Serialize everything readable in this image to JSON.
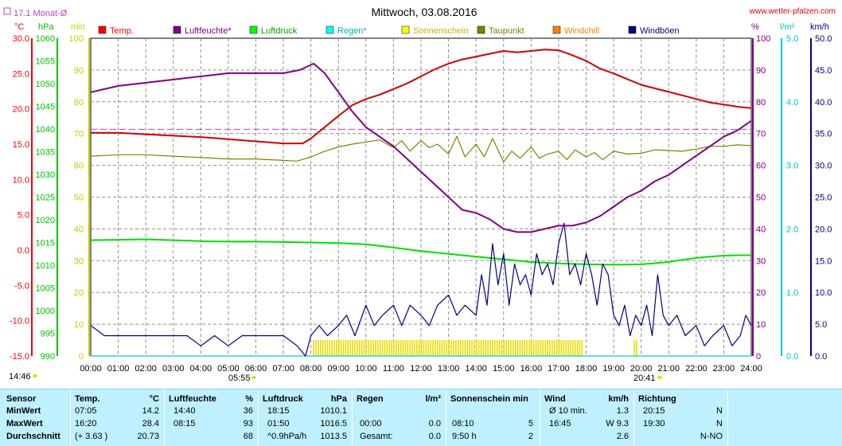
{
  "chart_data": {
    "type": "line",
    "title": "Mittwoch, 03.08.2016",
    "source_text": "www.wetter-pfalzen.com",
    "month_avg_label": "17.1 Monat-Ø",
    "x_ticks": [
      "00:00",
      "01:00",
      "02:00",
      "03:00",
      "04:00",
      "05:00",
      "06:00",
      "07:00",
      "08:00",
      "09:00",
      "10:00",
      "11:00",
      "12:00",
      "13:00",
      "14:00",
      "15:00",
      "16:00",
      "17:00",
      "18:00",
      "19:00",
      "20:00",
      "21:00",
      "22:00",
      "23:00",
      "24:00"
    ],
    "sunrise_label": "05:55",
    "sunset_label": "20:41",
    "now_label": "14:46",
    "axes": {
      "temp": {
        "unit": "°C",
        "range": [
          -15,
          30
        ],
        "ticks": [
          "30.0",
          "25.0",
          "20.0",
          "15.0",
          "10.0",
          "5.0",
          "0.0",
          "-5.0",
          "-10.0",
          "-15.0"
        ],
        "color": "#ff0000"
      },
      "press": {
        "unit": "hPa",
        "range": [
          990,
          1060
        ],
        "ticks": [
          "1060",
          "1055",
          "1050",
          "1045",
          "1040",
          "1035",
          "1030",
          "1025",
          "1020",
          "1015",
          "1010",
          "1005",
          "1000",
          "995",
          "990"
        ],
        "color": "#00c000"
      },
      "sun": {
        "unit": "min",
        "range": [
          0,
          100
        ],
        "ticks": [
          "100",
          "90",
          "80",
          "70",
          "60",
          "50",
          "40",
          "30",
          "20",
          "10",
          "0"
        ],
        "color": "#c8c800"
      },
      "hum": {
        "unit": "%",
        "range": [
          0,
          100
        ],
        "ticks": [
          "100",
          "90",
          "80",
          "70",
          "60",
          "50",
          "40",
          "30",
          "20",
          "10",
          "0"
        ],
        "color": "#800080"
      },
      "rain": {
        "unit": "l/m²",
        "range": [
          0,
          5
        ],
        "ticks": [
          "5.0",
          "4.0",
          "3.0",
          "2.0",
          "1.0",
          "0.0"
        ],
        "color": "#00c8c8"
      },
      "wind": {
        "unit": "km/h",
        "range": [
          0,
          50
        ],
        "ticks": [
          "50.0",
          "45.0",
          "40.0",
          "35.0",
          "30.0",
          "25.0",
          "20.0",
          "15.0",
          "10.0",
          "5.0",
          "0.0"
        ],
        "color": "#000080"
      }
    },
    "legend": [
      {
        "name": "Temp.",
        "color": "#ff0000"
      },
      {
        "name": "Luftfeuchte*",
        "color": "#800080"
      },
      {
        "name": "Luftdruck",
        "color": "#00ff00"
      },
      {
        "name": "Regen*",
        "color": "#00ffff"
      },
      {
        "name": "Sonnenschein",
        "color": "#ffff00"
      },
      {
        "name": "Taupunkt",
        "color": "#808000"
      },
      {
        "name": "Windchill",
        "color": "#ff8000"
      },
      {
        "name": "Windböen",
        "color": "#000080"
      }
    ],
    "series": [
      {
        "name": "Temp.",
        "axis": "temp",
        "color": "#d00000",
        "x": [
          0,
          1,
          2,
          3,
          4,
          5,
          6,
          7,
          7.7,
          8,
          8.5,
          9,
          9.5,
          10,
          10.5,
          11,
          11.5,
          12,
          12.5,
          13,
          13.5,
          14,
          14.5,
          15,
          15.5,
          16,
          16.5,
          17,
          17.5,
          18,
          18.5,
          19,
          19.5,
          20,
          20.5,
          21,
          21.5,
          22,
          22.5,
          23,
          23.5,
          24
        ],
        "y": [
          16.6,
          16.6,
          16.4,
          16.2,
          16.0,
          15.7,
          15.4,
          15.1,
          15.1,
          15.8,
          17.4,
          19.0,
          20.5,
          21.4,
          22.0,
          22.8,
          23.6,
          24.6,
          25.6,
          26.4,
          27.0,
          27.4,
          27.8,
          28.2,
          28.0,
          28.2,
          28.4,
          28.3,
          27.6,
          26.8,
          25.7,
          25.0,
          24.2,
          23.4,
          22.9,
          22.4,
          21.9,
          21.4,
          20.9,
          20.6,
          20.3,
          20.1
        ]
      },
      {
        "name": "Luftfeuchte*",
        "axis": "hum",
        "color": "#800080",
        "x": [
          0,
          1,
          2,
          3,
          4,
          5,
          6,
          7,
          7.6,
          8.1,
          8.5,
          9,
          9.5,
          10,
          10.5,
          11,
          11.5,
          12,
          12.5,
          13,
          13.5,
          14,
          14.5,
          15,
          15.5,
          16,
          16.5,
          17,
          17.5,
          18,
          18.5,
          19,
          19.5,
          20,
          20.5,
          21,
          21.5,
          22,
          22.5,
          23,
          23.5,
          24
        ],
        "y": [
          83,
          85,
          86,
          87,
          88,
          89,
          89,
          89,
          90,
          92,
          89,
          83,
          77,
          72,
          69,
          66,
          62,
          58,
          54,
          50,
          46,
          45,
          43,
          40,
          39,
          39,
          40,
          41,
          41,
          42,
          44,
          47,
          50,
          52,
          55,
          57,
          60,
          63,
          66,
          69,
          71,
          74
        ]
      },
      {
        "name": "Luftdruck",
        "axis": "press",
        "color": "#00e000",
        "x": [
          0,
          1,
          2,
          3,
          4,
          5,
          6,
          7,
          8,
          9,
          10,
          11,
          12,
          13,
          14,
          15,
          16,
          17,
          18,
          19,
          20,
          21,
          21.5,
          22,
          22.5,
          23,
          23.5,
          24
        ],
        "y": [
          1015.5,
          1015.6,
          1015.7,
          1015.5,
          1015.3,
          1015.2,
          1015.2,
          1015.1,
          1015.0,
          1014.9,
          1014.6,
          1013.9,
          1013.1,
          1012.5,
          1011.9,
          1011.3,
          1010.7,
          1010.4,
          1010.2,
          1010.1,
          1010.2,
          1010.7,
          1011.2,
          1011.6,
          1011.9,
          1012.1,
          1012.2,
          1012.2
        ]
      },
      {
        "name": "Taupunkt",
        "axis": "temp",
        "color": "#808000",
        "x": [
          0,
          1,
          2,
          3,
          4,
          5,
          6,
          7,
          7.5,
          8,
          8.5,
          9,
          9.5,
          10,
          10.5,
          11,
          11.3,
          11.6,
          12,
          12.3,
          12.6,
          13,
          13.3,
          13.6,
          14,
          14.3,
          14.6,
          15,
          15.3,
          15.6,
          16,
          16.3,
          16.6,
          17,
          17.3,
          17.6,
          18,
          18.3,
          18.6,
          19,
          19.5,
          20,
          20.5,
          21,
          21.5,
          22,
          22.5,
          23,
          23.5,
          24
        ],
        "y": [
          13.3,
          13.5,
          13.5,
          13.3,
          13.1,
          12.9,
          12.9,
          12.7,
          12.6,
          13.2,
          14.0,
          14.6,
          15.0,
          15.3,
          15.6,
          14.5,
          15.5,
          14.0,
          15.5,
          14.5,
          15.0,
          13.6,
          16.1,
          13.2,
          15.0,
          13.2,
          15.8,
          12.5,
          14.0,
          13.0,
          14.6,
          13.0,
          13.6,
          14.0,
          12.8,
          14.2,
          13.2,
          13.8,
          12.8,
          14.0,
          13.6,
          13.7,
          14.2,
          14.1,
          14.0,
          14.3,
          14.7,
          14.7,
          14.9,
          14.8
        ]
      },
      {
        "name": "Windböen",
        "axis": "wind",
        "color": "#000080",
        "x": [
          0,
          0.5,
          1,
          1.5,
          2,
          2.5,
          3,
          3.5,
          4,
          4.5,
          5,
          5.5,
          6,
          6.5,
          7,
          7.5,
          7.8,
          8,
          8.3,
          8.6,
          9,
          9.3,
          9.6,
          10,
          10.3,
          10.6,
          11,
          11.3,
          11.6,
          12,
          12.3,
          12.6,
          13,
          13.3,
          13.6,
          14,
          14.2,
          14.4,
          14.6,
          14.8,
          15,
          15.2,
          15.4,
          15.6,
          15.8,
          16,
          16.2,
          16.4,
          16.6,
          16.8,
          17,
          17.2,
          17.4,
          17.6,
          17.8,
          18,
          18.2,
          18.4,
          18.6,
          18.8,
          19,
          19.2,
          19.4,
          19.6,
          19.8,
          20,
          20.2,
          20.4,
          20.6,
          20.8,
          21,
          21.3,
          21.6,
          22,
          22.3,
          22.6,
          23,
          23.3,
          23.6,
          23.8,
          24
        ],
        "y": [
          4.8,
          3.2,
          3.2,
          3.2,
          3.2,
          3.2,
          3.2,
          3.2,
          1.6,
          3.2,
          1.6,
          3.2,
          3.2,
          3.2,
          3.2,
          1.6,
          0.0,
          3.2,
          4.8,
          3.2,
          4.8,
          6.4,
          3.2,
          8.0,
          4.8,
          6.4,
          8.0,
          4.8,
          8.0,
          6.4,
          4.8,
          8.0,
          9.6,
          6.4,
          8.0,
          6.4,
          12.8,
          8.0,
          17.7,
          11.2,
          16.1,
          8.0,
          14.5,
          11.2,
          12.8,
          9.6,
          16.1,
          12.8,
          14.5,
          11.2,
          17.7,
          20.9,
          12.8,
          14.5,
          11.2,
          16.1,
          12.8,
          8.0,
          14.5,
          12.8,
          6.4,
          4.8,
          8.0,
          3.2,
          6.4,
          4.8,
          8.0,
          3.2,
          12.8,
          6.4,
          4.8,
          6.4,
          3.2,
          4.8,
          1.6,
          3.2,
          4.8,
          1.6,
          3.2,
          6.4,
          4.8
        ]
      },
      {
        "name": "Regen*",
        "axis": "rain",
        "color": "#00d0d0",
        "x": [
          0,
          24
        ],
        "y": [
          0,
          0
        ]
      }
    ],
    "sunshine": {
      "axis": "sun",
      "color": "#e6dc00",
      "intervals": [
        [
          8.1,
          17.85
        ],
        [
          19.75,
          19.85
        ]
      ],
      "value": 5
    },
    "month_avg": {
      "axis": "temp",
      "value": 17.1,
      "color": "#c040c0"
    },
    "grid": true
  },
  "stats": {
    "headers": {
      "sensor": "Sensor",
      "temp": "Temp.",
      "temp_unit": "°C",
      "hum": "Luftfeuchte",
      "hum_unit": "%",
      "press": "Luftdruck",
      "press_unit": "hPa",
      "rain": "Regen",
      "rain_unit": "l/m²",
      "sun": "Sonnenschein min",
      "wind": "Wind",
      "wind_unit": "km/h",
      "dir": "Richtung"
    },
    "rows": [
      {
        "label": "MinWert",
        "t_time": "07:05",
        "t_val": "14.2",
        "h_time": "14:40",
        "h_val": "36",
        "p_time": "18:15",
        "p_val": "1010.1",
        "r_time": "",
        "r_val": "",
        "s_time": "",
        "s_val": "",
        "w_time": "Ø 10 min.",
        "w_val": "1.3",
        "d_time": "20:15",
        "d_val": "N"
      },
      {
        "label": "MaxWert",
        "t_time": "16:20",
        "t_val": "28.4",
        "h_time": "08:15",
        "h_val": "93",
        "p_time": "01:50",
        "p_val": "1016.5",
        "r_time": "00:00",
        "r_val": "0.0",
        "s_time": "08:10",
        "s_val": "5",
        "w_time": "16:45",
        "w_val": "W 9.3",
        "d_time": "19:30",
        "d_val": "N"
      },
      {
        "label": "Durchschnitt",
        "t_time": "(+ 3.63 )",
        "t_val": "20.73",
        "h_time": "",
        "h_val": "68",
        "p_time": "^0.9hPa/h",
        "p_val": "1013.5",
        "r_time": "Gesamt:",
        "r_val": "0.0",
        "s_time": "9:50 h",
        "s_val": "2",
        "w_time": "",
        "w_val": "2.6",
        "d_time": "",
        "d_val": "N-NO"
      }
    ]
  }
}
